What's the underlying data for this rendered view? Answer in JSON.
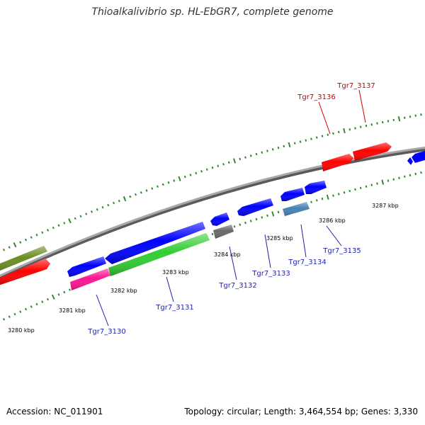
{
  "title": "Thioalkalivibrio sp. HL-EbGR7, complete genome",
  "footer": {
    "accession": "Accession: NC_011901",
    "topology": "Topology: circular; Length: 3,464,554 bp; Genes: 3,330"
  },
  "colors": {
    "backbone": "#808080",
    "tick_marks": "#2f8a2f",
    "forward_label": "#cc0000",
    "reverse_label": "#1f1fb4"
  },
  "scale_labels": [
    "3280 kbp",
    "3281 kbp",
    "3282 kbp",
    "3283 kbp",
    "3284 kbp",
    "3285 kbp",
    "3286 kbp",
    "3287 kbp"
  ],
  "gene_labels": [
    {
      "text": "Tgr7_3130",
      "strand": "reverse"
    },
    {
      "text": "Tgr7_3131",
      "strand": "reverse"
    },
    {
      "text": "Tgr7_3132",
      "strand": "reverse"
    },
    {
      "text": "Tgr7_3133",
      "strand": "reverse"
    },
    {
      "text": "Tgr7_3134",
      "strand": "reverse"
    },
    {
      "text": "Tgr7_3135",
      "strand": "reverse"
    },
    {
      "text": "Tgr7_3136",
      "strand": "forward"
    },
    {
      "text": "Tgr7_3137",
      "strand": "forward"
    }
  ],
  "features": [
    {
      "kind": "CDS",
      "strand": "forward",
      "color": "#6b8e23"
    },
    {
      "kind": "CDS",
      "strand": "forward",
      "color": "#ff0000"
    },
    {
      "kind": "CDS",
      "strand": "forward",
      "color": "#ff0000"
    },
    {
      "kind": "CDS",
      "strand": "forward",
      "color": "#ff0000"
    },
    {
      "kind": "CDS",
      "strand": "forward",
      "color": "#0000ff"
    },
    {
      "kind": "CDS",
      "strand": "reverse",
      "color": "#0000ff"
    },
    {
      "kind": "CDS",
      "strand": "reverse",
      "color": "#0000ff"
    },
    {
      "kind": "CDS",
      "strand": "reverse",
      "color": "#0000ff"
    },
    {
      "kind": "CDS",
      "strand": "reverse",
      "color": "#0000ff"
    },
    {
      "kind": "CDS",
      "strand": "reverse",
      "color": "#0000ff"
    },
    {
      "kind": "CDS",
      "strand": "reverse",
      "color": "#0000ff"
    },
    {
      "kind": "CDS",
      "strand": "reverse",
      "color": "#ff1493"
    },
    {
      "kind": "CDS",
      "strand": "reverse",
      "color": "#32cd32"
    },
    {
      "kind": "CDS",
      "strand": "reverse",
      "color": "#696969"
    },
    {
      "kind": "CDS",
      "strand": "reverse",
      "color": "#4682b4"
    }
  ]
}
